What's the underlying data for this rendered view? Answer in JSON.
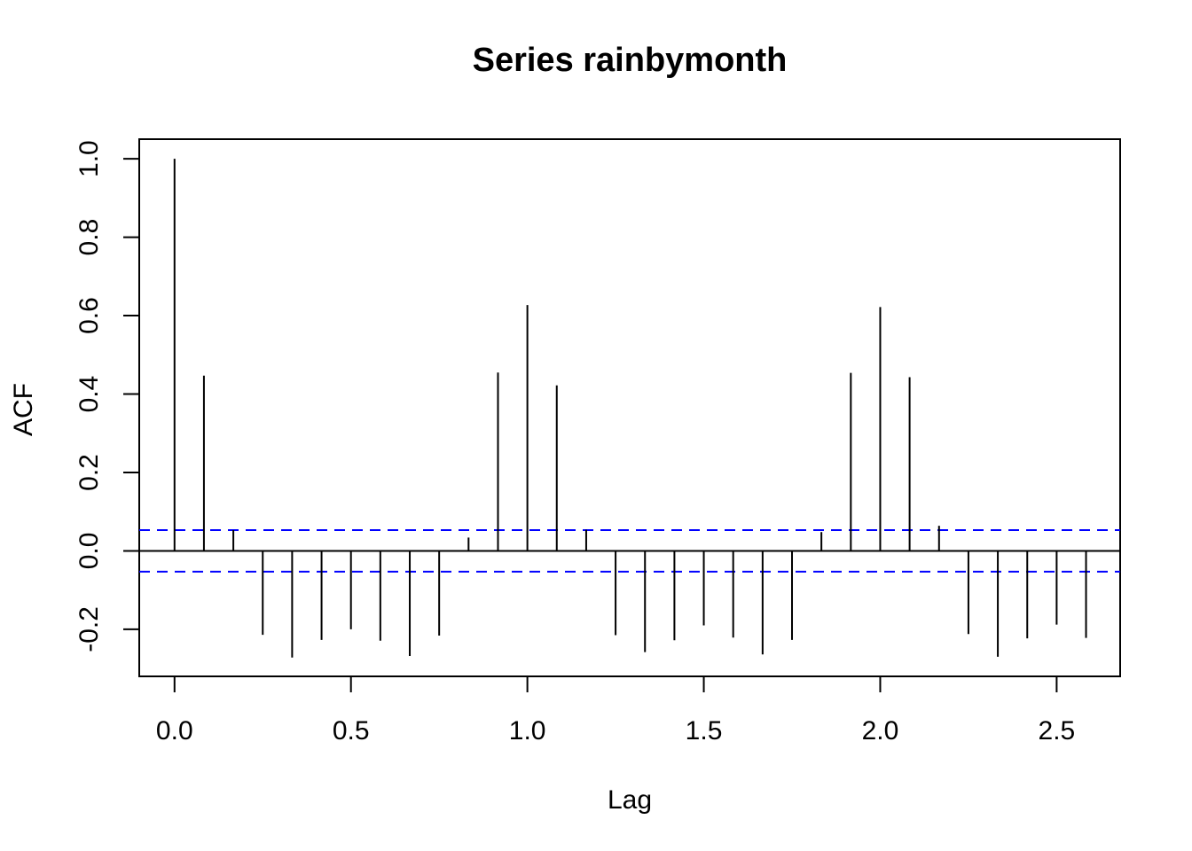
{
  "chart_data": {
    "type": "bar",
    "title": "Series  rainbymonth",
    "xlabel": "Lag",
    "ylabel": "ACF",
    "xlim": [
      -0.1,
      2.68
    ],
    "ylim": [
      -0.32,
      1.05
    ],
    "x_ticks": [
      0.0,
      0.5,
      1.0,
      1.5,
      2.0,
      2.5
    ],
    "x_tick_labels": [
      "0.0",
      "0.5",
      "1.0",
      "1.5",
      "2.0",
      "2.5"
    ],
    "y_ticks": [
      -0.2,
      0.0,
      0.2,
      0.4,
      0.6,
      0.8,
      1.0
    ],
    "y_tick_labels": [
      "-0.2",
      "0.0",
      "0.2",
      "0.4",
      "0.6",
      "0.8",
      "1.0"
    ],
    "confidence_band": {
      "upper": 0.053,
      "lower": -0.053,
      "color": "#0000ff",
      "style": "dashed"
    },
    "zero_line": true,
    "grid": false,
    "series": [
      {
        "x": [
          0.0,
          0.0833,
          0.1667,
          0.25,
          0.3333,
          0.4167,
          0.5,
          0.5833,
          0.6667,
          0.75,
          0.8333,
          0.9167,
          1.0,
          1.0833,
          1.1667,
          1.25,
          1.3333,
          1.4167,
          1.5,
          1.5833,
          1.6667,
          1.75,
          1.8333,
          1.9167,
          2.0,
          2.0833,
          2.1667,
          2.25,
          2.3333,
          2.4167,
          2.5,
          2.5833
        ],
        "values": [
          1.0,
          0.447,
          0.053,
          -0.214,
          -0.272,
          -0.227,
          -0.2,
          -0.229,
          -0.268,
          -0.216,
          0.034,
          0.455,
          0.627,
          0.422,
          0.054,
          -0.215,
          -0.258,
          -0.228,
          -0.19,
          -0.221,
          -0.264,
          -0.227,
          0.048,
          0.454,
          0.622,
          0.443,
          0.064,
          -0.212,
          -0.27,
          -0.223,
          -0.188,
          -0.222
        ],
        "color": "#000000"
      }
    ]
  }
}
